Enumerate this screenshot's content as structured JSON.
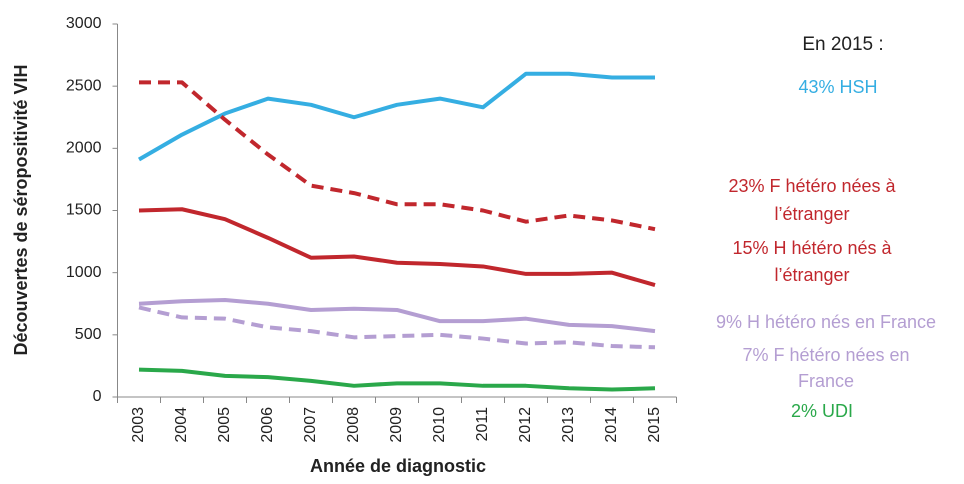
{
  "chart_data": {
    "type": "line",
    "y_label": "Découvertes de séropositivité VIH",
    "x_label": "Année de diagnostic",
    "categories": [
      "2003",
      "2004",
      "2005",
      "2006",
      "2007",
      "2008",
      "2009",
      "2010",
      "2011",
      "2012",
      "2013",
      "2014",
      "2015"
    ],
    "ylim": [
      0,
      3000
    ],
    "yticks": [
      0,
      500,
      1000,
      1500,
      2000,
      2500,
      3000
    ],
    "annotation": "En 2015 :",
    "series": [
      {
        "label": [
          "43% HSH"
        ],
        "color": "#35aee2",
        "dashed": false,
        "values": [
          1910,
          2110,
          2280,
          2400,
          2350,
          2250,
          2350,
          2400,
          2330,
          2600,
          2600,
          2570,
          2570
        ]
      },
      {
        "label": [
          "23% F hétéro nées à",
          "l’étranger"
        ],
        "color": "#c1272d",
        "dashed": true,
        "values": [
          2530,
          2530,
          2230,
          1950,
          1700,
          1640,
          1550,
          1550,
          1500,
          1410,
          1460,
          1420,
          1350
        ]
      },
      {
        "label": [
          "15% H hétéro nés à",
          "l’étranger"
        ],
        "color": "#c1272d",
        "dashed": false,
        "values": [
          1500,
          1510,
          1430,
          1280,
          1120,
          1130,
          1080,
          1070,
          1050,
          990,
          990,
          1000,
          900
        ]
      },
      {
        "label": [
          "9% H hétéro nés en France"
        ],
        "color": "#b49ed2",
        "dashed": false,
        "values": [
          750,
          770,
          780,
          750,
          700,
          710,
          700,
          610,
          610,
          630,
          580,
          570,
          530
        ]
      },
      {
        "label": [
          "7% F hétéro nées en",
          "France"
        ],
        "color": "#b49ed2",
        "dashed": true,
        "values": [
          720,
          640,
          630,
          560,
          530,
          480,
          490,
          500,
          470,
          430,
          440,
          410,
          400
        ]
      },
      {
        "label": [
          "2% UDI"
        ],
        "color": "#2aa84a",
        "dashed": false,
        "values": [
          220,
          210,
          170,
          160,
          130,
          90,
          110,
          110,
          90,
          90,
          70,
          60,
          70
        ]
      }
    ]
  }
}
